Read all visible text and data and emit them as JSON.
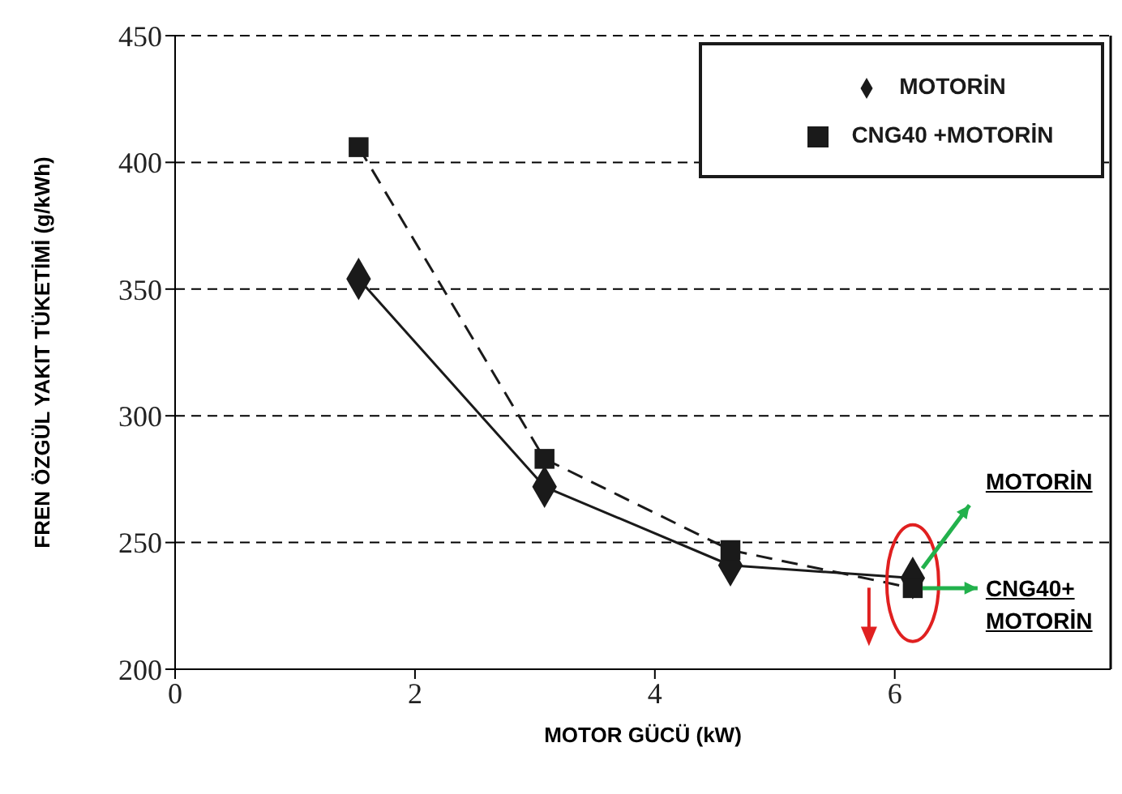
{
  "chart_data": {
    "type": "line",
    "xlabel": "MOTOR GÜCÜ (kW)",
    "ylabel": "FREN  ÖZGÜL YAKIT TÜKETİMİ (g/kWh)",
    "xlim": [
      0,
      7.8
    ],
    "xticks": [
      0,
      2,
      4,
      6
    ],
    "ylim": [
      200,
      450
    ],
    "yticks": [
      200,
      250,
      300,
      350,
      400,
      450
    ],
    "grid": "y",
    "legend": "top right",
    "series": [
      {
        "name": "MOTORİN",
        "color": "#1a1a1a",
        "x": [
          1.53,
          3.08,
          4.63,
          6.15
        ],
        "values": [
          354,
          272,
          241,
          236
        ],
        "marker": "diamond",
        "line_style": "solid"
      },
      {
        "name": "CNG40 +MOTORİN",
        "color": "#1a1a1a",
        "x": [
          1.53,
          3.08,
          4.63,
          6.15
        ],
        "values": [
          406,
          283,
          247,
          232
        ],
        "marker": "square",
        "line_style": "dashed"
      }
    ],
    "annotations": [
      {
        "text": "MOTORİN",
        "x": 6.15,
        "y": 236
      },
      {
        "text": "CNG40+ MOTORİN",
        "x": 6.15,
        "y": 232
      }
    ]
  }
}
